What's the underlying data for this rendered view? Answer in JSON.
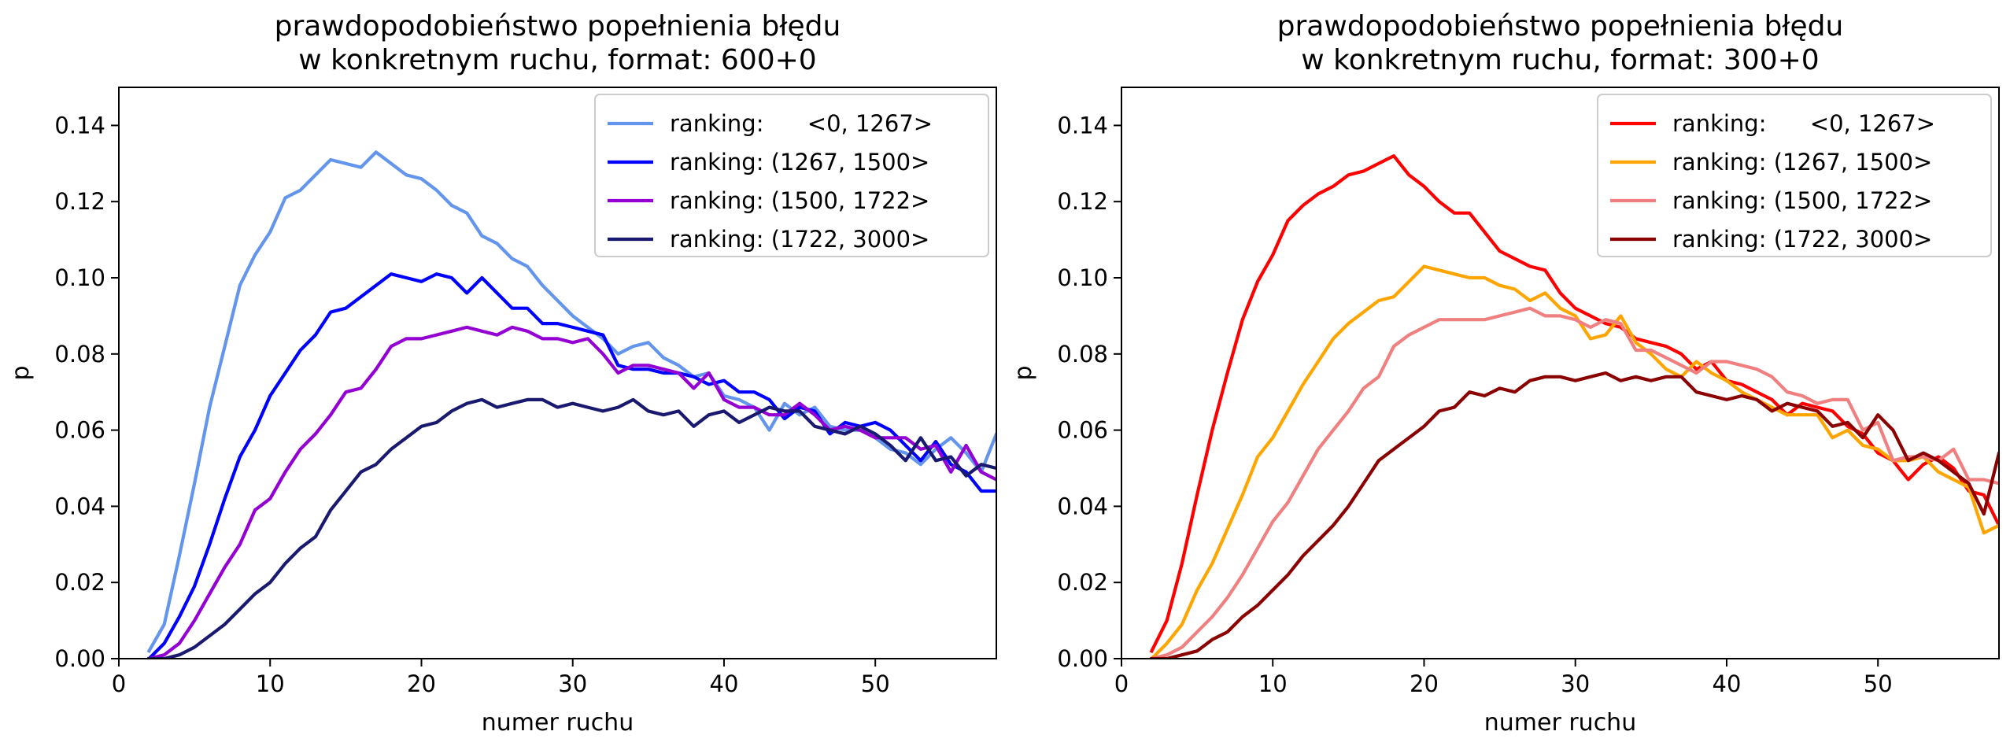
{
  "chart_data": [
    {
      "type": "line",
      "title": [
        "prawdopodobieństwo popełnienia błędu",
        "w konkretnym ruchu, format: 600+0"
      ],
      "xlabel": "numer ruchu",
      "ylabel": "p",
      "xlim": [
        0,
        58
      ],
      "ylim": [
        0,
        0.15
      ],
      "xticks": [
        0,
        10,
        20,
        30,
        40,
        50
      ],
      "yticks": [
        0.0,
        0.02,
        0.04,
        0.06,
        0.08,
        0.1,
        0.12,
        0.14
      ],
      "ytick_labels": [
        "0.00",
        "0.02",
        "0.04",
        "0.06",
        "0.08",
        "0.10",
        "0.12",
        "0.14"
      ],
      "grid": false,
      "legend_position": "top-right",
      "series": [
        {
          "name": "ranking:      <0, 1267>",
          "color": "#6495ed",
          "x_start": 2,
          "values": [
            0.002,
            0.009,
            0.027,
            0.046,
            0.066,
            0.082,
            0.098,
            0.106,
            0.112,
            0.121,
            0.123,
            0.127,
            0.131,
            0.13,
            0.129,
            0.133,
            0.13,
            0.127,
            0.126,
            0.123,
            0.119,
            0.117,
            0.111,
            0.109,
            0.105,
            0.103,
            0.098,
            0.094,
            0.09,
            0.087,
            0.084,
            0.08,
            0.082,
            0.083,
            0.079,
            0.077,
            0.074,
            0.075,
            0.069,
            0.068,
            0.066,
            0.06,
            0.067,
            0.064,
            0.066,
            0.061,
            0.06,
            0.06,
            0.058,
            0.055,
            0.054,
            0.051,
            0.055,
            0.058,
            0.054,
            0.049,
            0.059,
            0.044
          ]
        },
        {
          "name": "ranking: (1267, 1500>",
          "color": "#0000ff",
          "x_start": 2,
          "values": [
            0.0,
            0.004,
            0.011,
            0.019,
            0.03,
            0.042,
            0.053,
            0.06,
            0.069,
            0.075,
            0.081,
            0.085,
            0.091,
            0.092,
            0.095,
            0.098,
            0.101,
            0.1,
            0.099,
            0.101,
            0.1,
            0.096,
            0.1,
            0.096,
            0.092,
            0.092,
            0.088,
            0.088,
            0.087,
            0.086,
            0.085,
            0.077,
            0.076,
            0.076,
            0.075,
            0.075,
            0.074,
            0.072,
            0.073,
            0.07,
            0.07,
            0.068,
            0.063,
            0.066,
            0.065,
            0.059,
            0.062,
            0.061,
            0.062,
            0.06,
            0.056,
            0.052,
            0.057,
            0.051,
            0.049,
            0.044,
            0.044,
            0.04
          ]
        },
        {
          "name": "ranking: (1500, 1722>",
          "color": "#9400d3",
          "x_start": 2,
          "values": [
            0.0,
            0.001,
            0.004,
            0.01,
            0.017,
            0.024,
            0.03,
            0.039,
            0.042,
            0.049,
            0.055,
            0.059,
            0.064,
            0.07,
            0.071,
            0.076,
            0.082,
            0.084,
            0.084,
            0.085,
            0.086,
            0.087,
            0.086,
            0.085,
            0.087,
            0.086,
            0.084,
            0.084,
            0.083,
            0.084,
            0.08,
            0.075,
            0.077,
            0.077,
            0.076,
            0.075,
            0.071,
            0.075,
            0.068,
            0.066,
            0.066,
            0.064,
            0.064,
            0.067,
            0.064,
            0.06,
            0.061,
            0.06,
            0.058,
            0.058,
            0.058,
            0.055,
            0.056,
            0.049,
            0.056,
            0.049,
            0.047,
            0.044
          ]
        },
        {
          "name": "ranking: (1722, 3000>",
          "color": "#191970",
          "x_start": 2,
          "values": [
            0.0,
            0.0,
            0.001,
            0.003,
            0.006,
            0.009,
            0.013,
            0.017,
            0.02,
            0.025,
            0.029,
            0.032,
            0.039,
            0.044,
            0.049,
            0.051,
            0.055,
            0.058,
            0.061,
            0.062,
            0.065,
            0.067,
            0.068,
            0.066,
            0.067,
            0.068,
            0.068,
            0.066,
            0.067,
            0.066,
            0.065,
            0.066,
            0.068,
            0.065,
            0.064,
            0.065,
            0.061,
            0.064,
            0.065,
            0.062,
            0.064,
            0.066,
            0.065,
            0.065,
            0.061,
            0.06,
            0.059,
            0.061,
            0.059,
            0.056,
            0.052,
            0.058,
            0.052,
            0.053,
            0.048,
            0.051,
            0.05,
            0.047
          ]
        }
      ]
    },
    {
      "type": "line",
      "title": [
        "prawdopodobieństwo popełnienia błędu",
        "w konkretnym ruchu, format: 300+0"
      ],
      "xlabel": "numer ruchu",
      "ylabel": "p",
      "xlim": [
        0,
        58
      ],
      "ylim": [
        0,
        0.15
      ],
      "xticks": [
        0,
        10,
        20,
        30,
        40,
        50
      ],
      "yticks": [
        0.0,
        0.02,
        0.04,
        0.06,
        0.08,
        0.1,
        0.12,
        0.14
      ],
      "ytick_labels": [
        "0.00",
        "0.02",
        "0.04",
        "0.06",
        "0.08",
        "0.10",
        "0.12",
        "0.14"
      ],
      "grid": false,
      "legend_position": "top-right",
      "series": [
        {
          "name": "ranking:      <0, 1267>",
          "color": "#ff0000",
          "x_start": 2,
          "values": [
            0.002,
            0.01,
            0.025,
            0.043,
            0.06,
            0.075,
            0.089,
            0.099,
            0.106,
            0.115,
            0.119,
            0.122,
            0.124,
            0.127,
            0.128,
            0.13,
            0.132,
            0.127,
            0.124,
            0.12,
            0.117,
            0.117,
            0.112,
            0.107,
            0.105,
            0.103,
            0.102,
            0.096,
            0.092,
            0.09,
            0.088,
            0.087,
            0.084,
            0.083,
            0.082,
            0.08,
            0.076,
            0.078,
            0.073,
            0.072,
            0.07,
            0.068,
            0.064,
            0.067,
            0.066,
            0.065,
            0.061,
            0.059,
            0.054,
            0.052,
            0.047,
            0.051,
            0.053,
            0.05,
            0.044,
            0.043,
            0.035,
            0.054
          ]
        },
        {
          "name": "ranking: (1267, 1500>",
          "color": "#ffa500",
          "x_start": 2,
          "values": [
            0.0,
            0.004,
            0.009,
            0.018,
            0.025,
            0.034,
            0.043,
            0.053,
            0.058,
            0.065,
            0.072,
            0.078,
            0.084,
            0.088,
            0.091,
            0.094,
            0.095,
            0.099,
            0.103,
            0.102,
            0.101,
            0.1,
            0.1,
            0.098,
            0.097,
            0.094,
            0.096,
            0.092,
            0.09,
            0.084,
            0.085,
            0.09,
            0.083,
            0.08,
            0.076,
            0.074,
            0.078,
            0.075,
            0.073,
            0.07,
            0.068,
            0.066,
            0.064,
            0.064,
            0.064,
            0.058,
            0.06,
            0.056,
            0.055,
            0.052,
            0.052,
            0.053,
            0.049,
            0.047,
            0.045,
            0.033,
            0.035,
            0.04
          ]
        },
        {
          "name": "ranking: (1500, 1722>",
          "color": "#f08080",
          "x_start": 2,
          "values": [
            0.0,
            0.001,
            0.003,
            0.007,
            0.011,
            0.016,
            0.022,
            0.029,
            0.036,
            0.041,
            0.048,
            0.055,
            0.06,
            0.065,
            0.071,
            0.074,
            0.082,
            0.085,
            0.087,
            0.089,
            0.089,
            0.089,
            0.089,
            0.09,
            0.091,
            0.092,
            0.09,
            0.09,
            0.089,
            0.087,
            0.089,
            0.088,
            0.081,
            0.081,
            0.079,
            0.077,
            0.075,
            0.078,
            0.078,
            0.077,
            0.076,
            0.074,
            0.07,
            0.069,
            0.067,
            0.068,
            0.068,
            0.06,
            0.062,
            0.052,
            0.053,
            0.053,
            0.052,
            0.055,
            0.047,
            0.047,
            0.046,
            0.047
          ]
        },
        {
          "name": "ranking: (1722, 3000>",
          "color": "#8b0000",
          "x_start": 2,
          "values": [
            0.0,
            0.0,
            0.001,
            0.002,
            0.005,
            0.007,
            0.011,
            0.014,
            0.018,
            0.022,
            0.027,
            0.031,
            0.035,
            0.04,
            0.046,
            0.052,
            0.055,
            0.058,
            0.061,
            0.065,
            0.066,
            0.07,
            0.069,
            0.071,
            0.07,
            0.073,
            0.074,
            0.074,
            0.073,
            0.074,
            0.075,
            0.073,
            0.074,
            0.073,
            0.074,
            0.074,
            0.07,
            0.069,
            0.068,
            0.069,
            0.068,
            0.065,
            0.067,
            0.066,
            0.065,
            0.061,
            0.062,
            0.058,
            0.064,
            0.06,
            0.052,
            0.054,
            0.052,
            0.049,
            0.046,
            0.038,
            0.054,
            0.037
          ]
        }
      ]
    }
  ]
}
